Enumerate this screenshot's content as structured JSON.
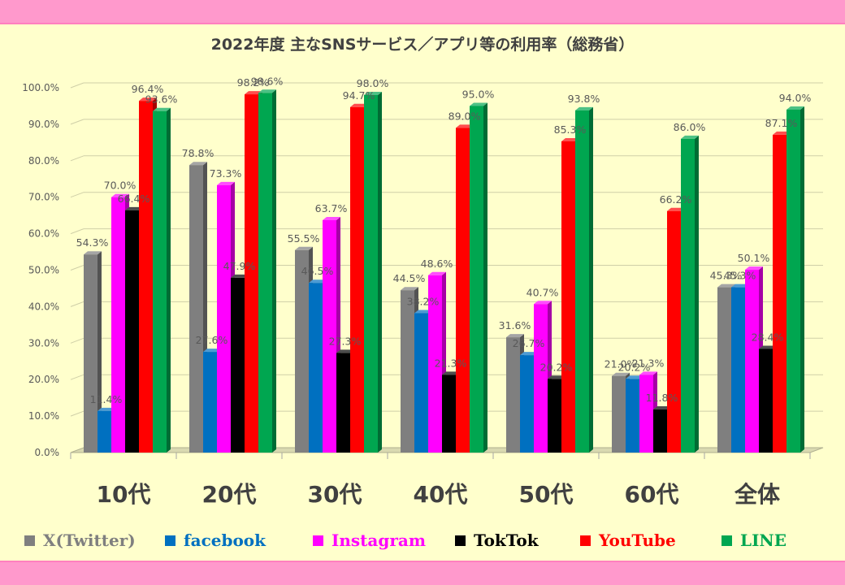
{
  "chart_data": {
    "type": "bar",
    "title": "2022年度 主なSNSサービス／アプリ等の利用率（総務省）",
    "categories": [
      "10代",
      "20代",
      "30代",
      "40代",
      "50代",
      "60代",
      "全体"
    ],
    "ylim": [
      0,
      100
    ],
    "yticks": [
      "0.0%",
      "10.0%",
      "20.0%",
      "30.0%",
      "40.0%",
      "50.0%",
      "60.0%",
      "70.0%",
      "80.0%",
      "90.0%",
      "100.0%"
    ],
    "grid": true,
    "legend_position": "bottom",
    "series": [
      {
        "name": "X(Twitter)",
        "color": "#7f7f7f",
        "values": [
          54.3,
          78.8,
          55.5,
          44.5,
          31.6,
          21.0,
          45.3
        ]
      },
      {
        "name": "facebook",
        "color": "#0070c0",
        "values": [
          11.4,
          27.6,
          46.5,
          38.2,
          26.7,
          20.2,
          45.3
        ]
      },
      {
        "name": "Instagram",
        "color": "#ff00ff",
        "values": [
          70.0,
          73.3,
          63.7,
          48.6,
          40.7,
          21.3,
          50.1
        ]
      },
      {
        "name": "TokTok",
        "color": "#000000",
        "values": [
          66.4,
          47.9,
          27.3,
          21.3,
          20.2,
          11.8,
          28.4
        ]
      },
      {
        "name": "YouTube",
        "color": "#ff0000",
        "values": [
          96.4,
          98.2,
          94.7,
          89.0,
          85.3,
          66.2,
          87.1
        ]
      },
      {
        "name": "LINE",
        "color": "#00a650",
        "values": [
          93.6,
          98.6,
          98.0,
          95.0,
          93.8,
          86.0,
          94.0
        ]
      }
    ],
    "data_labels": [
      [
        "54.3%",
        "78.8%",
        "55.5%",
        "44.5%",
        "31.6%",
        "21.0%",
        "45.3%"
      ],
      [
        "11.4%",
        "27.6%",
        "46.5%",
        "38.2%",
        "26.7%",
        "20.2%",
        "45.3%"
      ],
      [
        "70.0%",
        "73.3%",
        "63.7%",
        "48.6%",
        "40.7%",
        "21.3%",
        "50.1%"
      ],
      [
        "66.4%",
        "47.9%",
        "27.3%",
        "21.3%",
        "20.2%",
        "11.8%",
        "28.4%"
      ],
      [
        "96.4%",
        "98.2%",
        "94.7%",
        "89.0%",
        "85.3%",
        "66.2%",
        "87.1%"
      ],
      [
        "93.6%",
        "98.6%",
        "98.0%",
        "95.0%",
        "93.8%",
        "86.0%",
        "94.0%"
      ]
    ]
  }
}
